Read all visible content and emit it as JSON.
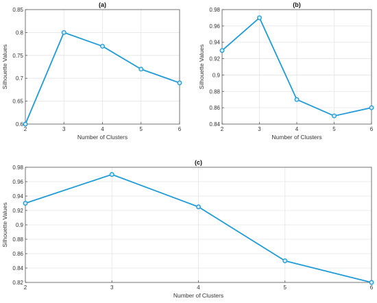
{
  "chart_data": [
    {
      "type": "line",
      "title": "(a)",
      "xlabel": "Number of Clusters",
      "ylabel": "Silhouette Values",
      "x": [
        2,
        3,
        4,
        5,
        6
      ],
      "series": [
        {
          "values": [
            0.6,
            0.8,
            0.77,
            0.72,
            0.69
          ]
        }
      ],
      "xlim": [
        2,
        6
      ],
      "ylim": [
        0.6,
        0.85
      ],
      "xticks": [
        2,
        3,
        4,
        5,
        6
      ],
      "xtick_labels": [
        "2",
        "3",
        "4",
        "5",
        "6"
      ],
      "yticks": [
        0.6,
        0.65,
        0.7,
        0.75,
        0.8,
        0.85
      ],
      "ytick_labels": [
        "0.6",
        "0.65",
        "0.7",
        "0.75",
        "0.8",
        "0.85"
      ],
      "grid": true,
      "color": "#1f9bd7"
    },
    {
      "type": "line",
      "title": "(b)",
      "xlabel": "Number of Clusters",
      "ylabel": "Silhouette Values",
      "x": [
        2,
        3,
        4,
        5,
        6
      ],
      "series": [
        {
          "values": [
            0.93,
            0.97,
            0.87,
            0.85,
            0.86
          ]
        }
      ],
      "xlim": [
        2,
        6
      ],
      "ylim": [
        0.84,
        0.98
      ],
      "xticks": [
        2,
        3,
        4,
        5,
        6
      ],
      "xtick_labels": [
        "2",
        "3",
        "4",
        "5",
        "6"
      ],
      "yticks": [
        0.84,
        0.86,
        0.88,
        0.9,
        0.92,
        0.94,
        0.96,
        0.98
      ],
      "ytick_labels": [
        "0.84",
        "0.86",
        "0.88",
        "0.9",
        "0.92",
        "0.94",
        "0.96",
        "0.98"
      ],
      "grid": true,
      "color": "#1f9bd7"
    },
    {
      "type": "line",
      "title": "(c)",
      "xlabel": "Number of Clusters",
      "ylabel": "Silhouette Values",
      "x": [
        2,
        3,
        4,
        5,
        6
      ],
      "series": [
        {
          "values": [
            0.93,
            0.97,
            0.925,
            0.85,
            0.82
          ]
        }
      ],
      "xlim": [
        2,
        6
      ],
      "ylim": [
        0.82,
        0.98
      ],
      "xticks": [
        2,
        3,
        4,
        5,
        6
      ],
      "xtick_labels": [
        "2",
        "3",
        "4",
        "5",
        "6"
      ],
      "yticks": [
        0.82,
        0.84,
        0.86,
        0.88,
        0.9,
        0.92,
        0.94,
        0.96,
        0.98
      ],
      "ytick_labels": [
        "0.82",
        "0.84",
        "0.86",
        "0.88",
        "0.9",
        "0.92",
        "0.94",
        "0.96",
        "0.98"
      ],
      "grid": true,
      "color": "#1f9bd7"
    }
  ]
}
